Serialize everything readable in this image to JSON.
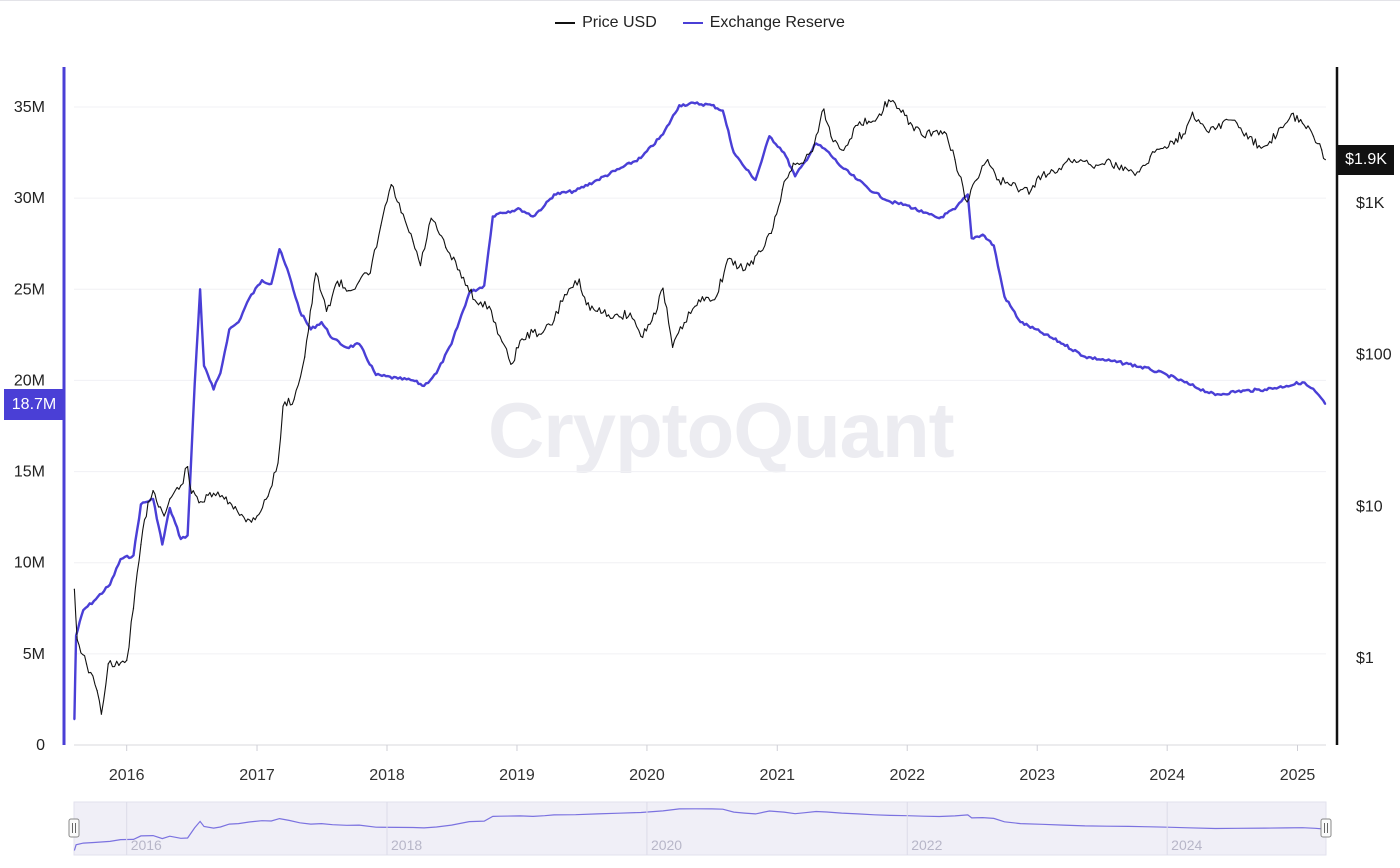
{
  "watermark": "CryptoQuant",
  "legend": [
    {
      "label": "Price USD",
      "color": "#111111"
    },
    {
      "label": "Exchange Reserve",
      "color": "#4a3fd6"
    }
  ],
  "current": {
    "reserve_label": "18.7M",
    "price_label": "$1.9K"
  },
  "navigator": {
    "years": [
      "2016",
      "2018",
      "2020",
      "2022",
      "2024"
    ]
  },
  "chart_data": {
    "type": "line",
    "x_ticks": [
      "2016",
      "2017",
      "2018",
      "2019",
      "2020",
      "2021",
      "2022",
      "2023",
      "2024",
      "2025"
    ],
    "y_left": {
      "ticks": [
        "0",
        "5M",
        "10M",
        "15M",
        "20M",
        "25M",
        "30M",
        "35M"
      ],
      "range": [
        0,
        35000000
      ]
    },
    "y_right": {
      "ticks": [
        "$1",
        "$10",
        "$100",
        "$1K"
      ],
      "scale": "log"
    },
    "series": [
      {
        "name": "Exchange Reserve",
        "axis": "left",
        "color": "#4a3fd6",
        "points": [
          [
            "2015-08-07",
            1400000
          ],
          [
            "2015-08-12",
            6000000
          ],
          [
            "2015-09-01",
            7400000
          ],
          [
            "2015-10-01",
            7900000
          ],
          [
            "2015-11-15",
            8800000
          ],
          [
            "2015-12-15",
            10200000
          ],
          [
            "2016-01-20",
            10400000
          ],
          [
            "2016-02-10",
            13200000
          ],
          [
            "2016-03-15",
            13500000
          ],
          [
            "2016-04-10",
            11000000
          ],
          [
            "2016-05-01",
            13000000
          ],
          [
            "2016-06-01",
            11300000
          ],
          [
            "2016-06-20",
            11500000
          ],
          [
            "2016-07-10",
            19800000
          ],
          [
            "2016-07-25",
            25000000
          ],
          [
            "2016-08-05",
            20800000
          ],
          [
            "2016-09-01",
            19500000
          ],
          [
            "2016-09-20",
            20400000
          ],
          [
            "2016-10-15",
            22800000
          ],
          [
            "2016-11-10",
            23200000
          ],
          [
            "2016-12-10",
            24500000
          ],
          [
            "2017-01-15",
            25500000
          ],
          [
            "2017-02-10",
            25300000
          ],
          [
            "2017-03-05",
            27200000
          ],
          [
            "2017-04-01",
            25800000
          ],
          [
            "2017-05-01",
            23800000
          ],
          [
            "2017-06-01",
            22800000
          ],
          [
            "2017-07-01",
            23200000
          ],
          [
            "2017-08-01",
            22300000
          ],
          [
            "2017-09-10",
            21800000
          ],
          [
            "2017-10-15",
            22000000
          ],
          [
            "2017-12-01",
            20300000
          ],
          [
            "2018-02-01",
            20100000
          ],
          [
            "2018-03-15",
            20000000
          ],
          [
            "2018-04-15",
            19700000
          ],
          [
            "2018-05-20",
            20400000
          ],
          [
            "2018-07-01",
            22000000
          ],
          [
            "2018-08-20",
            24800000
          ],
          [
            "2018-10-01",
            25200000
          ],
          [
            "2018-10-25",
            29000000
          ],
          [
            "2018-11-15",
            29200000
          ],
          [
            "2019-01-10",
            29400000
          ],
          [
            "2019-02-15",
            29000000
          ],
          [
            "2019-03-20",
            29600000
          ],
          [
            "2019-04-15",
            30200000
          ],
          [
            "2019-06-15",
            30400000
          ],
          [
            "2019-08-15",
            31000000
          ],
          [
            "2019-10-15",
            31600000
          ],
          [
            "2019-12-15",
            32200000
          ],
          [
            "2020-02-15",
            33500000
          ],
          [
            "2020-04-01",
            35100000
          ],
          [
            "2020-05-15",
            35200000
          ],
          [
            "2020-07-01",
            35100000
          ],
          [
            "2020-08-01",
            34800000
          ],
          [
            "2020-09-01",
            32500000
          ],
          [
            "2020-10-01",
            31700000
          ],
          [
            "2020-11-01",
            31000000
          ],
          [
            "2020-12-10",
            33400000
          ],
          [
            "2021-01-20",
            32500000
          ],
          [
            "2021-02-20",
            31200000
          ],
          [
            "2021-03-20",
            32000000
          ],
          [
            "2021-04-20",
            33000000
          ],
          [
            "2021-05-20",
            32600000
          ],
          [
            "2021-07-01",
            31700000
          ],
          [
            "2021-08-15",
            31000000
          ],
          [
            "2021-10-01",
            30300000
          ],
          [
            "2021-11-15",
            29800000
          ],
          [
            "2022-01-01",
            29600000
          ],
          [
            "2022-02-15",
            29200000
          ],
          [
            "2022-04-01",
            28900000
          ],
          [
            "2022-05-15",
            29400000
          ],
          [
            "2022-06-20",
            30200000
          ],
          [
            "2022-07-01",
            27800000
          ],
          [
            "2022-08-01",
            28000000
          ],
          [
            "2022-09-01",
            27400000
          ],
          [
            "2022-10-01",
            24600000
          ],
          [
            "2022-11-15",
            23200000
          ],
          [
            "2023-01-15",
            22600000
          ],
          [
            "2023-03-15",
            22000000
          ],
          [
            "2023-05-15",
            21300000
          ],
          [
            "2023-07-15",
            21100000
          ],
          [
            "2023-09-15",
            20900000
          ],
          [
            "2023-11-15",
            20600000
          ],
          [
            "2024-01-01",
            20300000
          ],
          [
            "2024-03-01",
            19800000
          ],
          [
            "2024-05-15",
            19200000
          ],
          [
            "2024-07-15",
            19400000
          ],
          [
            "2024-10-01",
            19500000
          ],
          [
            "2024-12-01",
            19700000
          ],
          [
            "2025-01-15",
            19900000
          ],
          [
            "2025-02-20",
            19400000
          ],
          [
            "2025-03-20",
            18700000
          ]
        ]
      },
      {
        "name": "Price USD",
        "axis": "right",
        "color": "#111111",
        "points": [
          [
            "2015-08-07",
            2.8
          ],
          [
            "2015-08-15",
            1.3
          ],
          [
            "2015-09-10",
            0.9
          ],
          [
            "2015-10-10",
            0.6
          ],
          [
            "2015-10-22",
            0.42
          ],
          [
            "2015-11-10",
            0.9
          ],
          [
            "2015-12-10",
            0.88
          ],
          [
            "2016-01-01",
            0.95
          ],
          [
            "2016-01-20",
            2.1
          ],
          [
            "2016-02-10",
            5.5
          ],
          [
            "2016-03-01",
            10.5
          ],
          [
            "2016-03-15",
            12.5
          ],
          [
            "2016-04-15",
            8.5
          ],
          [
            "2016-05-01",
            11.0
          ],
          [
            "2016-06-01",
            13.5
          ],
          [
            "2016-06-20",
            18.0
          ],
          [
            "2016-07-01",
            12.0
          ],
          [
            "2016-08-01",
            10.5
          ],
          [
            "2016-09-01",
            12.0
          ],
          [
            "2016-10-01",
            11.0
          ],
          [
            "2016-11-01",
            9.8
          ],
          [
            "2016-12-01",
            7.8
          ],
          [
            "2017-01-01",
            8.5
          ],
          [
            "2017-02-01",
            11.5
          ],
          [
            "2017-03-01",
            19.0
          ],
          [
            "2017-03-15",
            45.0
          ],
          [
            "2017-04-15",
            50.0
          ],
          [
            "2017-05-15",
            95.0
          ],
          [
            "2017-06-15",
            340.0
          ],
          [
            "2017-07-15",
            190.0
          ],
          [
            "2017-08-15",
            300.0
          ],
          [
            "2017-09-15",
            260.0
          ],
          [
            "2017-10-15",
            300.0
          ],
          [
            "2017-11-15",
            340.0
          ],
          [
            "2017-12-15",
            700.0
          ],
          [
            "2018-01-13",
            1300.0
          ],
          [
            "2018-02-10",
            850.0
          ],
          [
            "2018-03-15",
            550.0
          ],
          [
            "2018-04-05",
            380.0
          ],
          [
            "2018-05-05",
            780.0
          ],
          [
            "2018-06-15",
            500.0
          ],
          [
            "2018-08-15",
            280.0
          ],
          [
            "2018-09-15",
            210.0
          ],
          [
            "2018-10-15",
            205.0
          ],
          [
            "2018-11-20",
            120.0
          ],
          [
            "2018-12-15",
            85.0
          ],
          [
            "2019-01-15",
            125.0
          ],
          [
            "2019-02-15",
            138.0
          ],
          [
            "2019-03-15",
            138.0
          ],
          [
            "2019-04-15",
            165.0
          ],
          [
            "2019-05-15",
            245.0
          ],
          [
            "2019-06-25",
            310.0
          ],
          [
            "2019-07-15",
            210.0
          ],
          [
            "2019-08-15",
            190.0
          ],
          [
            "2019-09-15",
            180.0
          ],
          [
            "2019-10-15",
            175.0
          ],
          [
            "2019-11-15",
            185.0
          ],
          [
            "2019-12-15",
            130.0
          ],
          [
            "2020-01-15",
            165.0
          ],
          [
            "2020-02-15",
            270.0
          ],
          [
            "2020-03-13",
            110.0
          ],
          [
            "2020-04-15",
            160.0
          ],
          [
            "2020-05-15",
            205.0
          ],
          [
            "2020-06-15",
            235.0
          ],
          [
            "2020-07-15",
            240.0
          ],
          [
            "2020-08-15",
            420.0
          ],
          [
            "2020-09-15",
            370.0
          ],
          [
            "2020-10-15",
            380.0
          ],
          [
            "2020-11-15",
            470.0
          ],
          [
            "2020-12-15",
            620.0
          ],
          [
            "2021-01-15",
            1200.0
          ],
          [
            "2021-02-15",
            1800.0
          ],
          [
            "2021-03-15",
            1800.0
          ],
          [
            "2021-04-15",
            2400.0
          ],
          [
            "2021-05-12",
            4100.0
          ],
          [
            "2021-06-01",
            2700.0
          ],
          [
            "2021-07-01",
            2200.0
          ],
          [
            "2021-08-15",
            3200.0
          ],
          [
            "2021-09-15",
            3400.0
          ],
          [
            "2021-10-15",
            3800.0
          ],
          [
            "2021-11-10",
            4700.0
          ],
          [
            "2021-12-15",
            3900.0
          ],
          [
            "2022-01-15",
            3200.0
          ],
          [
            "2022-02-15",
            2700.0
          ],
          [
            "2022-03-15",
            2900.0
          ],
          [
            "2022-04-15",
            2900.0
          ],
          [
            "2022-05-15",
            1900.0
          ],
          [
            "2022-06-18",
            1000.0
          ],
          [
            "2022-07-15",
            1400.0
          ],
          [
            "2022-08-15",
            1900.0
          ],
          [
            "2022-09-15",
            1400.0
          ],
          [
            "2022-10-15",
            1300.0
          ],
          [
            "2022-11-15",
            1200.0
          ],
          [
            "2022-12-15",
            1200.0
          ],
          [
            "2023-01-15",
            1500.0
          ],
          [
            "2023-02-15",
            1600.0
          ],
          [
            "2023-03-15",
            1750.0
          ],
          [
            "2023-04-15",
            1900.0
          ],
          [
            "2023-05-15",
            1850.0
          ],
          [
            "2023-06-15",
            1750.0
          ],
          [
            "2023-07-15",
            1880.0
          ],
          [
            "2023-08-15",
            1700.0
          ],
          [
            "2023-09-15",
            1600.0
          ],
          [
            "2023-10-15",
            1580.0
          ],
          [
            "2023-11-15",
            2000.0
          ],
          [
            "2023-12-15",
            2250.0
          ],
          [
            "2024-01-15",
            2500.0
          ],
          [
            "2024-02-15",
            2800.0
          ],
          [
            "2024-03-12",
            3900.0
          ],
          [
            "2024-04-15",
            3100.0
          ],
          [
            "2024-05-15",
            3000.0
          ],
          [
            "2024-06-15",
            3500.0
          ],
          [
            "2024-07-15",
            3300.0
          ],
          [
            "2024-08-15",
            2600.0
          ],
          [
            "2024-09-15",
            2350.0
          ],
          [
            "2024-10-15",
            2500.0
          ],
          [
            "2024-11-15",
            3100.0
          ],
          [
            "2024-12-15",
            3800.0
          ],
          [
            "2025-01-15",
            3300.0
          ],
          [
            "2025-02-15",
            2700.0
          ],
          [
            "2025-03-10",
            2200.0
          ],
          [
            "2025-03-20",
            1900.0
          ]
        ]
      }
    ]
  }
}
